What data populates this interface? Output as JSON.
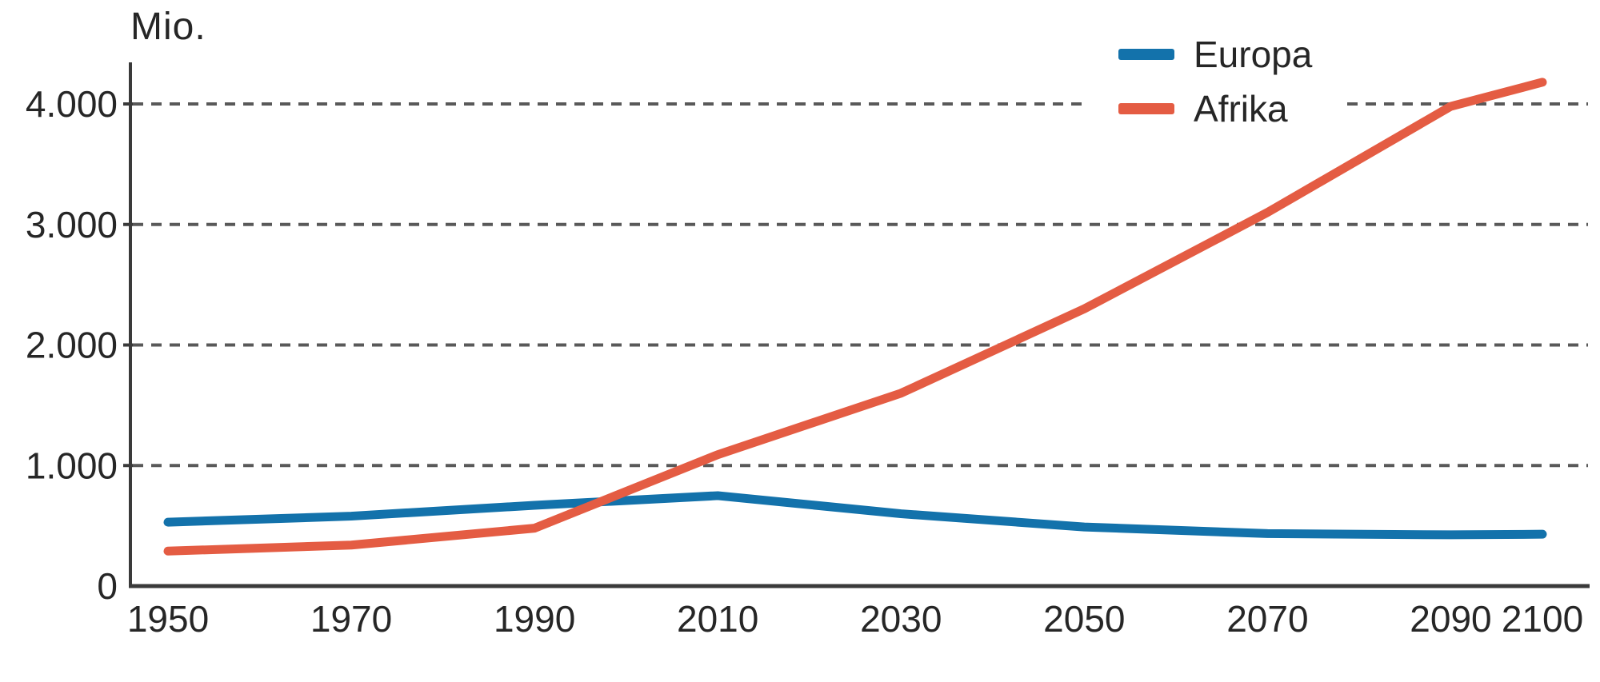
{
  "chart_data": {
    "type": "line",
    "title": "",
    "ylabel": "Mio.",
    "xlabel": "",
    "xlim": [
      1950,
      2100
    ],
    "ylim": [
      0,
      4400
    ],
    "x_years": [
      1950,
      1970,
      1990,
      2010,
      2030,
      2050,
      2070,
      2090,
      2100
    ],
    "x_tick_labels": [
      "1950",
      "1970",
      "1990",
      "2010",
      "2030",
      "2050",
      "2070",
      "2090",
      "2100"
    ],
    "y_ticks": [
      {
        "value": 0,
        "label": "0"
      },
      {
        "value": 1000,
        "label": "1.000"
      },
      {
        "value": 2000,
        "label": "2.000"
      },
      {
        "value": 3000,
        "label": "3.000"
      },
      {
        "value": 4000,
        "label": "4.000"
      }
    ],
    "grid": "horizontal-dashed",
    "legend_position": "top-right",
    "series": [
      {
        "name": "Europa",
        "color": "#1372ab",
        "values": [
          530,
          580,
          670,
          750,
          600,
          490,
          435,
          425,
          430
        ]
      },
      {
        "name": "Afrika",
        "color": "#e45c43",
        "values": [
          290,
          340,
          480,
          1090,
          1600,
          2300,
          3100,
          3980,
          4180
        ]
      }
    ]
  },
  "colors": {
    "background": "#ffffff",
    "axis": "#3a3a3a",
    "grid": "#595959",
    "text": "#262626",
    "europa_line": "#1372ab",
    "afrika_line": "#e45c43"
  }
}
